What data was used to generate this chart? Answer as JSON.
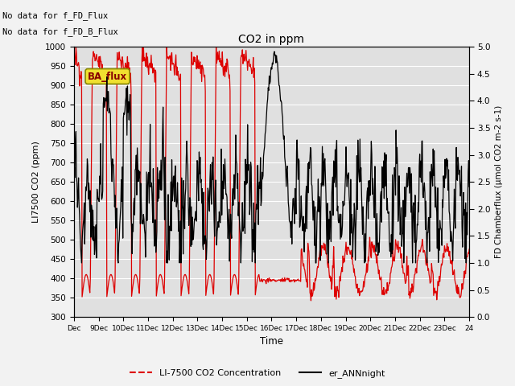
{
  "title": "CO2 in ppm",
  "xlabel": "Time",
  "ylabel_left": "LI7500 CO2 (ppm)",
  "ylabel_right": "FD Chamberflux (μmol CO2 m-2 s-1)",
  "text_no_data1": "No data for f_FD_Flux",
  "text_no_data2": "No data for f_FD_B_Flux",
  "ba_flux_label": "BA_flux",
  "legend_label_red": "LI-7500 CO2 Concentration",
  "legend_label_black": "er_ANNnight",
  "ylim_left": [
    300,
    1000
  ],
  "ylim_right": [
    0.0,
    5.0
  ],
  "yticks_left": [
    300,
    350,
    400,
    450,
    500,
    550,
    600,
    650,
    700,
    750,
    800,
    850,
    900,
    950,
    1000
  ],
  "yticks_right": [
    0.0,
    0.5,
    1.0,
    1.5,
    2.0,
    2.5,
    3.0,
    3.5,
    4.0,
    4.5,
    5.0
  ],
  "background_color": "#e0e0e0",
  "fig_background": "#f2f2f2",
  "grid_color": "#ffffff",
  "red_color": "#dd0000",
  "black_color": "#000000",
  "ba_flux_bg": "#f0e030",
  "ba_flux_text": "#880000",
  "figsize": [
    6.4,
    4.8
  ],
  "dpi": 100
}
